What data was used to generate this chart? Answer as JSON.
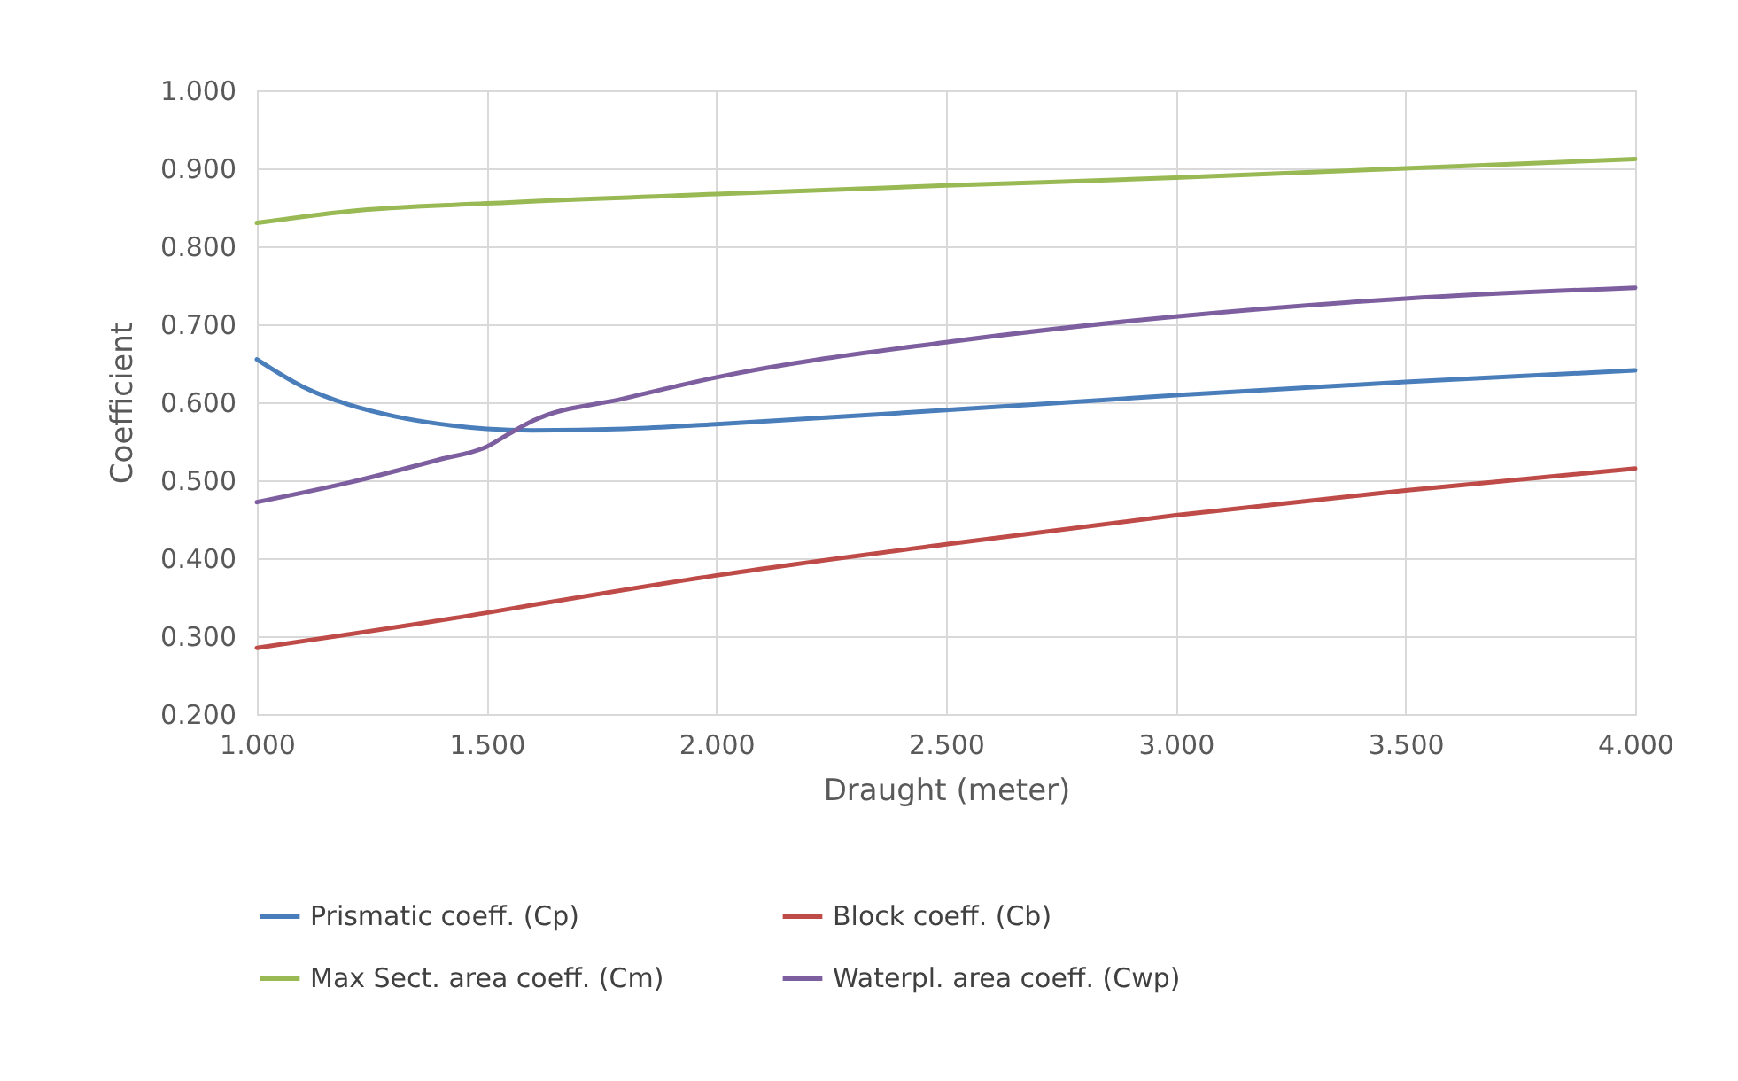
{
  "chart_data": {
    "type": "line",
    "xlabel": "Draught (meter)",
    "ylabel": "Coefficient",
    "xlim": [
      1,
      4
    ],
    "xticks": [
      {
        "value": 1,
        "label": "1.000"
      },
      {
        "value": 1.5,
        "label": "1.500"
      },
      {
        "value": 2,
        "label": "2.000"
      },
      {
        "value": 2.5,
        "label": "2.500"
      },
      {
        "value": 3,
        "label": "3.000"
      },
      {
        "value": 3.5,
        "label": "3.500"
      },
      {
        "value": 4,
        "label": "4.000"
      }
    ],
    "ylim": [
      0.2,
      1
    ],
    "yticks": [
      {
        "value": 0.2,
        "label": "0.200"
      },
      {
        "value": 0.3,
        "label": "0.300"
      },
      {
        "value": 0.4,
        "label": "0.400"
      },
      {
        "value": 0.5,
        "label": "0.500"
      },
      {
        "value": 0.6,
        "label": "0.600"
      },
      {
        "value": 0.7,
        "label": "0.700"
      },
      {
        "value": 0.8,
        "label": "0.800"
      },
      {
        "value": 0.9,
        "label": "0.900"
      },
      {
        "value": 1,
        "label": "1.000"
      }
    ],
    "grid": true,
    "legend": "bottom",
    "marker": "none",
    "line_style": "solid",
    "series": [
      {
        "name": "Prismatic coeff. (Cp)",
        "color": "#4a7ebb",
        "x": [
          1,
          1.1,
          1.2,
          1.3,
          1.4,
          1.5,
          1.6,
          1.8,
          2,
          2.5,
          3,
          3.5,
          4
        ],
        "values": [
          0.655,
          0.62,
          0.597,
          0.582,
          0.572,
          0.566,
          0.564,
          0.566,
          0.572,
          0.59,
          0.609,
          0.626,
          0.641
        ]
      },
      {
        "name": "Block coeff. (Cb)",
        "color": "#be4b48",
        "x": [
          1,
          1.5,
          1.6,
          2,
          2.5,
          3,
          3.5,
          4
        ],
        "values": [
          0.285,
          0.33,
          0.34,
          0.378,
          0.418,
          0.455,
          0.487,
          0.515
        ]
      },
      {
        "name": "Max Sect. area coeff. (Cm)",
        "color": "#98b954",
        "x": [
          1,
          1.2,
          1.5,
          2,
          2.5,
          3,
          3.5,
          4
        ],
        "values": [
          0.83,
          0.845,
          0.855,
          0.867,
          0.878,
          0.888,
          0.9,
          0.912
        ]
      },
      {
        "name": "Waterpl. area coeff. (Cwp)",
        "color": "#7d5fa0",
        "x": [
          1,
          1.2,
          1.4,
          1.5,
          1.55,
          1.6,
          1.8,
          2,
          2.5,
          3,
          3.5,
          4
        ],
        "values": [
          0.472,
          0.497,
          0.527,
          0.543,
          0.56,
          0.576,
          0.605,
          0.632,
          0.677,
          0.71,
          0.733,
          0.747
        ]
      }
    ]
  }
}
